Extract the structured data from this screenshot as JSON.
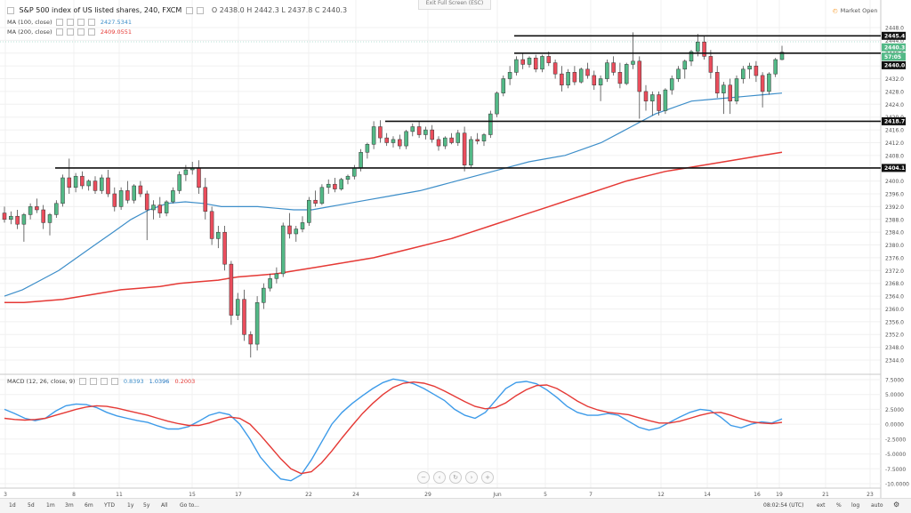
{
  "header": {
    "title": "S&P 500 index of US listed shares, 240, FXCM",
    "ohlc": "O 2438.0 H 2442.3 L 2437.8 C 2440.3",
    "exit_fullscreen": "Exit Full Screen (ESC)",
    "market_status": "Market Open"
  },
  "indicators": {
    "ma100": {
      "label": "MA (100, close)",
      "value": "2427.5341",
      "color": "#3d8ec9"
    },
    "ma200": {
      "label": "MA (200, close)",
      "value": "2409.0551",
      "color": "#e53935"
    },
    "macd": {
      "label": "MACD (12, 26, close, 9)",
      "v1": "0.8393",
      "v2": "1.0396",
      "v3": "0.2003"
    }
  },
  "price_axis": {
    "ticks": [
      "2448.0",
      "2444.0",
      "2440.0",
      "2436.0",
      "2432.0",
      "2428.0",
      "2424.0",
      "2420.0",
      "2416.0",
      "2412.0",
      "2408.0",
      "2404.0",
      "2400.0",
      "2396.0",
      "2392.0",
      "2388.0",
      "2384.0",
      "2380.0",
      "2376.0",
      "2372.0",
      "2368.0",
      "2364.0",
      "2360.0",
      "2356.0",
      "2352.0",
      "2348.0",
      "2344.0"
    ],
    "labels": [
      {
        "text": "2445.4",
        "kind": "line"
      },
      {
        "text": "2440.3",
        "kind": "price"
      },
      {
        "text": "57:05",
        "kind": "timer"
      },
      {
        "text": "2440.0",
        "kind": "line"
      },
      {
        "text": "2418.7",
        "kind": "line"
      },
      {
        "text": "2404.1",
        "kind": "line"
      }
    ]
  },
  "macd_axis": {
    "ticks": [
      "7.5000",
      "5.0000",
      "2.5000",
      "0.0000",
      "-2.5000",
      "-5.0000",
      "-7.5000",
      "-10.0000"
    ]
  },
  "time_axis": {
    "ticks": [
      "3",
      "8",
      "11",
      "15",
      "17",
      "22",
      "24",
      "29",
      "Jun",
      "5",
      "7",
      "12",
      "14",
      "16",
      "19",
      "21",
      "23"
    ]
  },
  "bottom_bar": {
    "ranges": [
      "1d",
      "5d",
      "1m",
      "3m",
      "6m",
      "YTD",
      "1y",
      "5y",
      "All",
      "Go to..."
    ],
    "time": "08:02:54 (UTC)",
    "right": [
      "ext",
      "%",
      "log",
      "auto"
    ]
  },
  "chart_data": {
    "type": "candlestick",
    "title": "S&P 500 index of US listed shares, 240, FXCM",
    "ylim": [
      2342,
      2451
    ],
    "horizontal_lines": [
      2445.4,
      2440.0,
      2418.7,
      2404.1
    ],
    "candles": [
      [
        2390.0,
        2392.0,
        2387.0,
        2388.0
      ],
      [
        2388.0,
        2390.5,
        2386.5,
        2389.0
      ],
      [
        2389.0,
        2391.0,
        2385.0,
        2386.5
      ],
      [
        2386.5,
        2390.0,
        2381.0,
        2389.5
      ],
      [
        2389.5,
        2393.0,
        2388.0,
        2392.0
      ],
      [
        2392.0,
        2394.5,
        2390.0,
        2391.0
      ],
      [
        2391.0,
        2392.5,
        2385.0,
        2387.0
      ],
      [
        2387.0,
        2390.0,
        2383.0,
        2389.5
      ],
      [
        2389.5,
        2394.0,
        2388.5,
        2393.0
      ],
      [
        2393.0,
        2402.0,
        2392.0,
        2401.0
      ],
      [
        2401.0,
        2407.0,
        2396.0,
        2398.0
      ],
      [
        2398.0,
        2402.5,
        2396.5,
        2401.5
      ],
      [
        2401.5,
        2403.0,
        2397.5,
        2398.5
      ],
      [
        2398.5,
        2400.5,
        2397.0,
        2400.0
      ],
      [
        2400.0,
        2401.5,
        2396.0,
        2397.0
      ],
      [
        2397.0,
        2402.0,
        2396.0,
        2401.0
      ],
      [
        2401.0,
        2403.5,
        2395.0,
        2396.0
      ],
      [
        2396.0,
        2398.0,
        2390.5,
        2392.0
      ],
      [
        2392.0,
        2398.0,
        2391.0,
        2397.0
      ],
      [
        2397.0,
        2400.0,
        2393.0,
        2394.0
      ],
      [
        2394.0,
        2399.0,
        2393.0,
        2398.5
      ],
      [
        2398.5,
        2400.0,
        2395.0,
        2396.0
      ],
      [
        2396.0,
        2397.0,
        2381.5,
        2391.0
      ],
      [
        2391.0,
        2394.0,
        2388.0,
        2392.5
      ],
      [
        2392.5,
        2395.0,
        2388.5,
        2390.0
      ],
      [
        2390.0,
        2394.0,
        2389.0,
        2393.5
      ],
      [
        2393.5,
        2398.0,
        2393.0,
        2397.0
      ],
      [
        2397.0,
        2403.0,
        2396.0,
        2402.0
      ],
      [
        2402.0,
        2405.0,
        2400.0,
        2403.5
      ],
      [
        2403.5,
        2406.0,
        2402.0,
        2404.0
      ],
      [
        2404.0,
        2406.5,
        2396.0,
        2398.0
      ],
      [
        2398.0,
        2401.0,
        2388.0,
        2390.5
      ],
      [
        2390.5,
        2392.0,
        2380.0,
        2382.0
      ],
      [
        2382.0,
        2386.0,
        2379.0,
        2384.0
      ],
      [
        2384.0,
        2386.0,
        2372.0,
        2374.0
      ],
      [
        2374.0,
        2375.0,
        2355.0,
        2358.0
      ],
      [
        2358.0,
        2365.0,
        2356.5,
        2363.0
      ],
      [
        2363.0,
        2366.0,
        2350.0,
        2352.0
      ],
      [
        2352.0,
        2353.0,
        2344.8,
        2349.0
      ],
      [
        2349.0,
        2364.0,
        2347.0,
        2362.0
      ],
      [
        2362.0,
        2368.0,
        2360.0,
        2366.5
      ],
      [
        2366.5,
        2371.0,
        2365.5,
        2369.5
      ],
      [
        2369.5,
        2373.0,
        2368.0,
        2371.0
      ],
      [
        2371.0,
        2387.0,
        2370.0,
        2386.0
      ],
      [
        2386.0,
        2390.0,
        2382.0,
        2383.5
      ],
      [
        2383.5,
        2386.0,
        2381.0,
        2385.0
      ],
      [
        2385.0,
        2389.0,
        2384.0,
        2387.0
      ],
      [
        2387.0,
        2395.0,
        2386.0,
        2394.0
      ],
      [
        2394.0,
        2397.0,
        2392.0,
        2393.0
      ],
      [
        2393.0,
        2399.0,
        2392.5,
        2398.0
      ],
      [
        2398.0,
        2400.5,
        2396.0,
        2399.0
      ],
      [
        2399.0,
        2401.0,
        2396.5,
        2397.5
      ],
      [
        2397.5,
        2401.0,
        2397.0,
        2400.5
      ],
      [
        2400.5,
        2402.0,
        2399.0,
        2401.5
      ],
      [
        2401.5,
        2405.0,
        2400.5,
        2404.0
      ],
      [
        2404.0,
        2410.0,
        2403.0,
        2409.0
      ],
      [
        2409.0,
        2412.0,
        2407.0,
        2411.5
      ],
      [
        2411.5,
        2418.7,
        2410.0,
        2417.0
      ],
      [
        2417.0,
        2419.0,
        2412.0,
        2413.5
      ],
      [
        2413.5,
        2415.0,
        2411.0,
        2412.0
      ],
      [
        2412.0,
        2414.0,
        2410.5,
        2413.0
      ],
      [
        2413.0,
        2414.5,
        2410.0,
        2411.0
      ],
      [
        2411.0,
        2416.0,
        2410.0,
        2415.5
      ],
      [
        2415.5,
        2418.0,
        2414.0,
        2417.0
      ],
      [
        2417.0,
        2418.5,
        2413.5,
        2414.5
      ],
      [
        2414.5,
        2417.0,
        2413.0,
        2416.0
      ],
      [
        2416.0,
        2417.5,
        2412.0,
        2413.0
      ],
      [
        2413.0,
        2414.0,
        2409.5,
        2411.0
      ],
      [
        2411.0,
        2414.0,
        2410.0,
        2413.5
      ],
      [
        2413.5,
        2415.0,
        2411.5,
        2412.0
      ],
      [
        2412.0,
        2416.0,
        2411.0,
        2415.0
      ],
      [
        2415.0,
        2417.0,
        2403.0,
        2405.0
      ],
      [
        2405.0,
        2414.0,
        2404.0,
        2413.0
      ],
      [
        2413.0,
        2415.0,
        2411.5,
        2412.5
      ],
      [
        2412.5,
        2415.0,
        2411.0,
        2414.5
      ],
      [
        2414.5,
        2422.0,
        2413.5,
        2421.0
      ],
      [
        2421.0,
        2428.0,
        2420.0,
        2427.5
      ],
      [
        2427.5,
        2433.0,
        2426.5,
        2432.0
      ],
      [
        2432.0,
        2436.0,
        2430.0,
        2434.0
      ],
      [
        2434.0,
        2439.0,
        2433.0,
        2438.0
      ],
      [
        2438.0,
        2440.0,
        2435.0,
        2436.5
      ],
      [
        2436.5,
        2439.0,
        2435.5,
        2438.5
      ],
      [
        2438.5,
        2439.5,
        2434.0,
        2435.0
      ],
      [
        2435.0,
        2439.5,
        2434.0,
        2439.0
      ],
      [
        2439.0,
        2440.5,
        2436.0,
        2437.0
      ],
      [
        2437.0,
        2438.0,
        2432.0,
        2433.5
      ],
      [
        2433.5,
        2436.0,
        2428.0,
        2430.0
      ],
      [
        2430.0,
        2435.0,
        2429.0,
        2434.0
      ],
      [
        2434.0,
        2436.0,
        2430.0,
        2431.0
      ],
      [
        2431.0,
        2435.5,
        2430.5,
        2435.0
      ],
      [
        2435.0,
        2437.0,
        2432.0,
        2433.0
      ],
      [
        2433.0,
        2434.5,
        2428.5,
        2430.0
      ],
      [
        2430.0,
        2433.0,
        2425.0,
        2432.0
      ],
      [
        2432.0,
        2438.0,
        2431.0,
        2437.0
      ],
      [
        2437.0,
        2439.0,
        2433.0,
        2434.0
      ],
      [
        2434.0,
        2437.0,
        2429.0,
        2430.5
      ],
      [
        2430.5,
        2437.0,
        2430.0,
        2436.5
      ],
      [
        2436.5,
        2446.5,
        2435.0,
        2437.5
      ],
      [
        2437.5,
        2439.0,
        2419.5,
        2428.0
      ],
      [
        2428.0,
        2430.0,
        2422.0,
        2425.0
      ],
      [
        2425.0,
        2428.0,
        2420.5,
        2427.0
      ],
      [
        2427.0,
        2428.0,
        2420.5,
        2422.0
      ],
      [
        2422.0,
        2429.0,
        2421.0,
        2428.5
      ],
      [
        2428.5,
        2433.0,
        2427.0,
        2432.0
      ],
      [
        2432.0,
        2436.0,
        2431.0,
        2435.0
      ],
      [
        2435.0,
        2438.0,
        2432.0,
        2437.5
      ],
      [
        2437.5,
        2441.0,
        2436.0,
        2440.5
      ],
      [
        2440.5,
        2446.0,
        2439.0,
        2443.5
      ],
      [
        2443.5,
        2445.4,
        2438.0,
        2439.0
      ],
      [
        2439.0,
        2441.0,
        2432.0,
        2434.0
      ],
      [
        2434.0,
        2436.0,
        2426.0,
        2427.5
      ],
      [
        2427.5,
        2431.0,
        2421.0,
        2430.0
      ],
      [
        2430.0,
        2432.0,
        2421.0,
        2425.0
      ],
      [
        2425.0,
        2433.0,
        2424.0,
        2432.0
      ],
      [
        2432.0,
        2436.0,
        2430.5,
        2435.0
      ],
      [
        2435.0,
        2437.0,
        2432.0,
        2436.0
      ],
      [
        2436.0,
        2437.5,
        2431.0,
        2433.0
      ],
      [
        2433.0,
        2434.0,
        2423.0,
        2428.0
      ],
      [
        2428.0,
        2434.0,
        2427.0,
        2433.5
      ],
      [
        2433.5,
        2438.5,
        2432.5,
        2438.0
      ],
      [
        2438.0,
        2442.3,
        2437.8,
        2440.3
      ]
    ],
    "ma100": [
      2364,
      2366,
      2369,
      2372,
      2376,
      2380,
      2384,
      2388,
      2391,
      2393,
      2393.5,
      2393,
      2392,
      2392,
      2392,
      2391.5,
      2391,
      2391,
      2392,
      2393,
      2394,
      2395,
      2396,
      2397,
      2398.5,
      2400,
      2401.5,
      2403,
      2404.5,
      2406,
      2407,
      2408,
      2410,
      2412,
      2415,
      2418,
      2421,
      2423,
      2425,
      2425.5,
      2426,
      2426.5,
      2427,
      2427.5
    ],
    "ma200": [
      2362,
      2362,
      2362.5,
      2363,
      2364,
      2365,
      2366,
      2366.5,
      2367,
      2368,
      2368.5,
      2369,
      2370,
      2370.5,
      2371,
      2372,
      2373,
      2374,
      2375,
      2376,
      2377.5,
      2379,
      2380.5,
      2382,
      2384,
      2386,
      2388,
      2390,
      2392,
      2394,
      2396,
      2398,
      2400,
      2401.5,
      2403,
      2404,
      2405,
      2406,
      2407,
      2408,
      2409
    ],
    "macd_line": [
      2.5,
      1.8,
      1.0,
      0.6,
      1.0,
      2.2,
      3.1,
      3.4,
      3.3,
      2.8,
      2.0,
      1.4,
      1.0,
      0.6,
      0.3,
      -0.3,
      -0.8,
      -0.8,
      -0.4,
      0.5,
      1.5,
      2.0,
      1.6,
      0.0,
      -2.5,
      -5.5,
      -7.5,
      -9.2,
      -9.5,
      -8.5,
      -6.0,
      -3.0,
      0.0,
      2.0,
      3.5,
      4.8,
      6.0,
      7.0,
      7.6,
      7.3,
      6.8,
      6.0,
      5.0,
      4.0,
      2.5,
      1.5,
      1.0,
      2.0,
      4.0,
      6.0,
      7.0,
      7.2,
      6.8,
      5.8,
      4.5,
      3.0,
      2.0,
      1.5,
      1.5,
      1.8,
      1.5,
      0.5,
      -0.5,
      -1.0,
      -0.6,
      0.3,
      1.2,
      2.0,
      2.5,
      2.3,
      1.2,
      -0.2,
      -0.6,
      0.0,
      0.4,
      0.2,
      0.9
    ],
    "signal_line": [
      1.0,
      0.8,
      0.7,
      0.8,
      1.0,
      1.5,
      2.0,
      2.5,
      2.9,
      3.1,
      3.0,
      2.7,
      2.3,
      1.9,
      1.5,
      1.0,
      0.5,
      0.1,
      -0.2,
      -0.2,
      0.2,
      0.8,
      1.2,
      1.0,
      0.0,
      -1.8,
      -3.8,
      -5.8,
      -7.5,
      -8.3,
      -8.0,
      -6.5,
      -4.5,
      -2.3,
      -0.2,
      1.8,
      3.5,
      5.0,
      6.2,
      6.9,
      7.1,
      6.9,
      6.4,
      5.6,
      4.7,
      3.8,
      3.0,
      2.6,
      2.8,
      3.6,
      4.8,
      5.8,
      6.5,
      6.6,
      6.0,
      5.0,
      3.9,
      3.0,
      2.4,
      2.0,
      1.8,
      1.6,
      1.1,
      0.6,
      0.2,
      0.2,
      0.5,
      1.0,
      1.5,
      1.9,
      2.0,
      1.5,
      0.9,
      0.4,
      0.2,
      0.1,
      0.3
    ]
  }
}
